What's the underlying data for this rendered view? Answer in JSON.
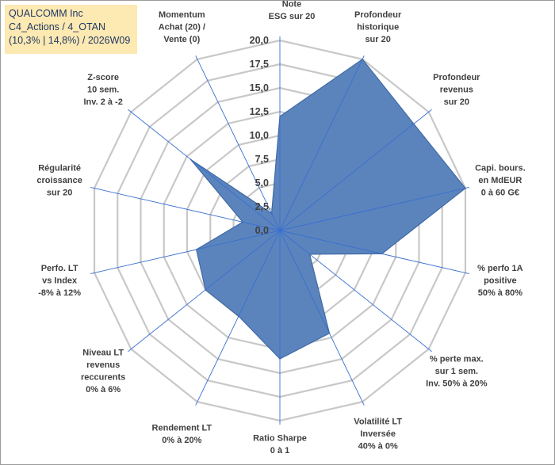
{
  "title_box": {
    "line1": "QUALCOMM Inc",
    "line2": "C4_Actions / 4_OTAN",
    "line3": "(10,3% | 14,8%) / 2026W09",
    "background": "#fde9b2",
    "text_color": "#1f3864"
  },
  "chart_data": {
    "type": "radar",
    "rmin": 0,
    "rmax": 20,
    "tick_step": 2.5,
    "tick_labels": [
      "0,0",
      "2,5",
      "5,0",
      "7,5",
      "10,0",
      "12,5",
      "15,0",
      "17,5",
      "20,0"
    ],
    "grid": true,
    "fill_color": "#5b84bd",
    "stroke_color": "#3f6aa6",
    "axes": [
      {
        "label": [
          "Note",
          "ESG sur 20"
        ],
        "value": 12
      },
      {
        "label": [
          "Profondeur",
          "historique",
          "sur 20"
        ],
        "value": 20
      },
      {
        "label": [
          "Profondeur",
          "revenus",
          "sur 20"
        ],
        "value": 18
      },
      {
        "label": [
          "Capi. bours.",
          "en MdEUR",
          "0 à 60 G€"
        ],
        "value": 20
      },
      {
        "label": [
          "% perfo 1A",
          "positive",
          "50% à 80%"
        ],
        "value": 11
      },
      {
        "label": [
          "% perte max.",
          "sur 1 sem.",
          "Inv. 50% à 20%"
        ],
        "value": 4
      },
      {
        "label": [
          "Volatilité LT",
          "Inversée",
          "40% à 0%"
        ],
        "value": 12
      },
      {
        "label": [
          "Ratio Sharpe",
          "0 à 1"
        ],
        "value": 13.5
      },
      {
        "label": [
          "Rendement LT",
          "0% à 20%"
        ],
        "value": 10
      },
      {
        "label": [
          "Niveau LT",
          "revenus",
          "reccurents",
          "0% à 6%"
        ],
        "value": 10
      },
      {
        "label": [
          "Perfo. LT",
          "vs Index",
          "-8% à 12%"
        ],
        "value": 9
      },
      {
        "label": [
          "Régularité",
          "croissance",
          "sur 20"
        ],
        "value": 4
      },
      {
        "label": [
          "Z-score",
          "10 sem.",
          "Inv. 2 à -2"
        ],
        "value": 12
      },
      {
        "label": [
          "Momentum",
          "Achat (20) /",
          "Vente (0)"
        ],
        "value": 2
      }
    ]
  }
}
